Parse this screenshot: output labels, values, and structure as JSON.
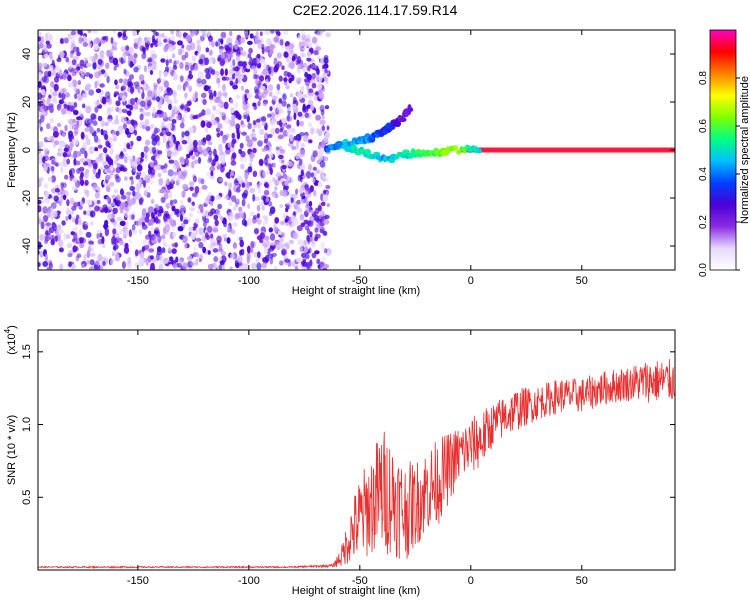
{
  "title": "C2E2.2026.114.17.59.R14",
  "colors": {
    "snr_line": "#e83030",
    "scatter": "#7a2ee6",
    "noise_light": "#c9a6f2"
  },
  "chart_data": [
    {
      "type": "heatmap",
      "name": "spectrogram",
      "xlabel": "Height of straight line (km)",
      "ylabel": "Frequency (Hz)",
      "xlim": [
        -195,
        92
      ],
      "ylim": [
        -50,
        50
      ],
      "xticks": [
        -150,
        -100,
        -50,
        0,
        50
      ],
      "yticks": [
        -40,
        -20,
        0,
        20,
        40
      ],
      "colorbar": {
        "label": "Normalized spectral amplitude",
        "range": [
          0.0,
          1.0
        ],
        "ticks": [
          "0.0",
          "0.2",
          "0.4",
          "0.6",
          "0.8"
        ],
        "tick_values": [
          0.0,
          0.2,
          0.4,
          0.6,
          0.8
        ],
        "colormap": [
          "#ffffff",
          "#e6d9ff",
          "#8a2be2",
          "#4b00d8",
          "#0040ff",
          "#00c0ff",
          "#00ff80",
          "#80ff00",
          "#ffff00",
          "#ff8000",
          "#ff0000",
          "#ff00c0"
        ]
      },
      "features": {
        "noise_region_x": [
          -195,
          -68
        ],
        "noise_amplitude": 0.2,
        "carrier_frequency": 0,
        "carrier_x": [
          -5,
          92
        ],
        "carrier_amplitude": 0.95,
        "branch_points": [
          {
            "x": -65,
            "y": 1,
            "a": 0.35
          },
          {
            "x": -58,
            "y": 2,
            "a": 0.45
          },
          {
            "x": -50,
            "y": 4,
            "a": 0.45
          },
          {
            "x": -45,
            "y": 5,
            "a": 0.4
          },
          {
            "x": -40,
            "y": 8,
            "a": 0.35
          },
          {
            "x": -35,
            "y": 10,
            "a": 0.3
          },
          {
            "x": -30,
            "y": 14,
            "a": 0.25
          },
          {
            "x": -27,
            "y": 18,
            "a": 0.25
          }
        ],
        "trace_points": [
          {
            "x": -60,
            "y": 2,
            "a": 0.45
          },
          {
            "x": -52,
            "y": 0,
            "a": 0.5
          },
          {
            "x": -45,
            "y": -2,
            "a": 0.5
          },
          {
            "x": -38,
            "y": -4,
            "a": 0.45
          },
          {
            "x": -30,
            "y": -2,
            "a": 0.5
          },
          {
            "x": -22,
            "y": -1,
            "a": 0.55
          },
          {
            "x": -15,
            "y": -1,
            "a": 0.6
          },
          {
            "x": -8,
            "y": 0,
            "a": 0.65
          },
          {
            "x": 5,
            "y": 0,
            "a": 0.45
          }
        ]
      }
    },
    {
      "type": "line",
      "name": "snr",
      "xlabel": "Height of straight line (km)",
      "ylabel": "SNR (10 * v/v)",
      "multiplier": "(x10",
      "multiplier_exp": "4",
      "multiplier_close": ")",
      "xlim": [
        -195,
        92
      ],
      "ylim": [
        0,
        1.65
      ],
      "xticks": [
        -150,
        -100,
        -50,
        0,
        50
      ],
      "yticks": [
        0.5,
        1.0,
        1.5
      ],
      "ytick_labels": [
        "0.5",
        "1.0",
        "1.5"
      ],
      "x": [
        -195,
        -170,
        -140,
        -110,
        -80,
        -62,
        -58,
        -54,
        -50,
        -45,
        -40,
        -35,
        -30,
        -25,
        -20,
        -15,
        -10,
        -5,
        0,
        5,
        10,
        15,
        20,
        30,
        40,
        50,
        60,
        70,
        80,
        92
      ],
      "y": [
        0.02,
        0.02,
        0.02,
        0.02,
        0.02,
        0.03,
        0.1,
        0.25,
        0.35,
        0.45,
        0.55,
        0.5,
        0.4,
        0.45,
        0.55,
        0.6,
        0.7,
        0.8,
        0.85,
        0.9,
        1.0,
        1.05,
        1.1,
        1.15,
        1.2,
        1.2,
        1.25,
        1.28,
        1.3,
        1.3
      ],
      "spread": [
        0.005,
        0.005,
        0.005,
        0.005,
        0.005,
        0.01,
        0.08,
        0.2,
        0.3,
        0.35,
        0.45,
        0.4,
        0.35,
        0.3,
        0.3,
        0.3,
        0.25,
        0.2,
        0.2,
        0.2,
        0.15,
        0.15,
        0.15,
        0.12,
        0.12,
        0.12,
        0.12,
        0.12,
        0.15,
        0.15
      ]
    }
  ]
}
